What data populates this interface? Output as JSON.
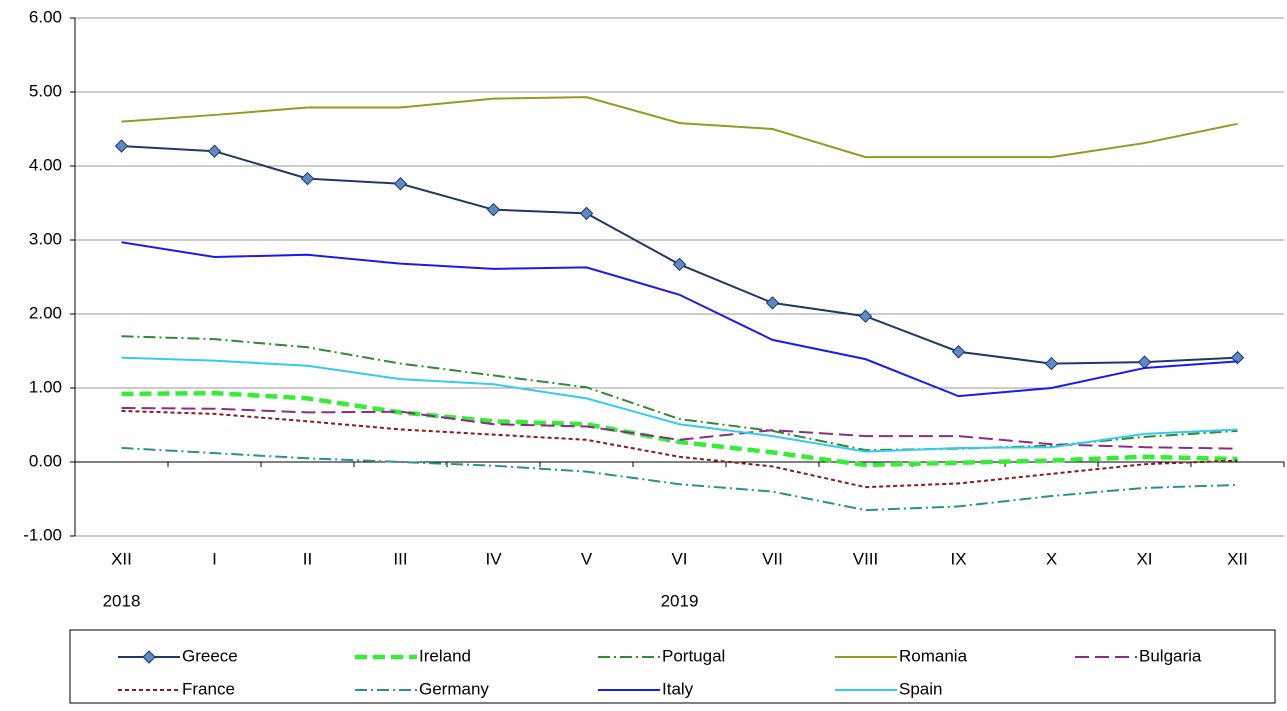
{
  "chart_data": {
    "type": "line",
    "categories": [
      "XII",
      "I",
      "II",
      "III",
      "IV",
      "V",
      "VI",
      "VII",
      "VIII",
      "IX",
      "X",
      "XI",
      "XII"
    ],
    "category_years": [
      "2018",
      null,
      null,
      null,
      null,
      null,
      "2019",
      null,
      null,
      null,
      null,
      null,
      null
    ],
    "ylim": [
      -1,
      6
    ],
    "yticks": [
      {
        "value": -1,
        "label": "-1.00"
      },
      {
        "value": 0,
        "label": "0.00"
      },
      {
        "value": 1,
        "label": "1.00"
      },
      {
        "value": 2,
        "label": "2.00"
      },
      {
        "value": 3,
        "label": "3.00"
      },
      {
        "value": 4,
        "label": "4.00"
      },
      {
        "value": 5,
        "label": "5.00"
      },
      {
        "value": 6,
        "label": "6.00"
      }
    ],
    "grid": true,
    "legend": "bottom",
    "series": [
      {
        "name": "Greece",
        "color": "#1f3864",
        "style": "solid",
        "marker": "diamond",
        "values": [
          4.27,
          4.2,
          3.83,
          3.76,
          3.41,
          3.36,
          2.67,
          2.15,
          1.97,
          1.49,
          1.33,
          1.35,
          1.41
        ]
      },
      {
        "name": "Ireland",
        "color": "#33ee33",
        "style": "bold-dashed",
        "values": [
          0.92,
          0.93,
          0.86,
          0.67,
          0.55,
          0.51,
          0.27,
          0.13,
          -0.04,
          -0.01,
          0.02,
          0.07,
          0.04
        ]
      },
      {
        "name": "Portugal",
        "color": "#2e8b2e",
        "style": "dash-dot",
        "values": [
          1.7,
          1.66,
          1.55,
          1.33,
          1.17,
          1.01,
          0.58,
          0.42,
          0.16,
          0.18,
          0.22,
          0.34,
          0.42
        ]
      },
      {
        "name": "Romania",
        "color": "#999922",
        "style": "solid",
        "values": [
          4.6,
          4.69,
          4.79,
          4.79,
          4.91,
          4.93,
          4.58,
          4.5,
          4.12,
          4.12,
          4.12,
          4.31,
          4.57
        ]
      },
      {
        "name": "Bulgaria",
        "color": "#8b2c8b",
        "style": "long-dashed",
        "values": [
          0.73,
          0.72,
          0.67,
          0.68,
          0.51,
          0.48,
          0.3,
          0.43,
          0.35,
          0.35,
          0.24,
          0.2,
          0.18
        ]
      },
      {
        "name": "France",
        "color": "#8b1a1a",
        "style": "short-dashed",
        "values": [
          0.69,
          0.65,
          0.55,
          0.44,
          0.37,
          0.3,
          0.07,
          -0.06,
          -0.34,
          -0.29,
          -0.16,
          -0.03,
          0.02
        ]
      },
      {
        "name": "Germany",
        "color": "#2a9090",
        "style": "dash-dot",
        "values": [
          0.19,
          0.12,
          0.05,
          0.0,
          -0.05,
          -0.13,
          -0.3,
          -0.4,
          -0.65,
          -0.6,
          -0.46,
          -0.35,
          -0.31
        ]
      },
      {
        "name": "Italy",
        "color": "#1a1aee",
        "style": "solid",
        "values": [
          2.97,
          2.77,
          2.8,
          2.68,
          2.61,
          2.63,
          2.26,
          1.65,
          1.39,
          0.89,
          1.0,
          1.27,
          1.36
        ]
      },
      {
        "name": "Spain",
        "color": "#33ccee",
        "style": "solid",
        "values": [
          1.41,
          1.37,
          1.3,
          1.12,
          1.05,
          0.86,
          0.51,
          0.35,
          0.14,
          0.19,
          0.2,
          0.38,
          0.44
        ]
      }
    ]
  }
}
